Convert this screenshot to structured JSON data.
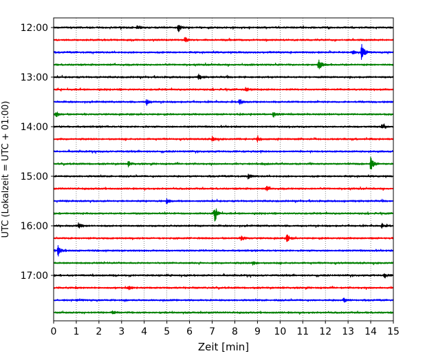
{
  "chart_data": {
    "type": "line",
    "title": "",
    "xlabel": "Zeit  [min]",
    "ylabel": "UTC (Lokalzeit = UTC + 01:00)",
    "xlim": [
      0,
      15
    ],
    "x_ticks": [
      0,
      1,
      2,
      3,
      4,
      5,
      6,
      7,
      8,
      9,
      10,
      11,
      12,
      13,
      14,
      15
    ],
    "x_tick_labels": [
      "0",
      "1",
      "2",
      "3",
      "4",
      "5",
      "6",
      "7",
      "8",
      "9",
      "10",
      "11",
      "12",
      "13",
      "14",
      "15"
    ],
    "y_tick_labels": [
      "12:00",
      "13:00",
      "14:00",
      "15:00",
      "16:00",
      "17:00"
    ],
    "y_tick_trace_index": [
      0,
      4,
      8,
      12,
      16,
      20
    ],
    "trace_interval_min": 15,
    "grid": true,
    "trace_colors": [
      "#000000",
      "#ff0000",
      "#0000ff",
      "#008000"
    ],
    "series": [
      {
        "start": "12:00",
        "events": [
          [
            3.7,
            0.35
          ],
          [
            5.5,
            0.55
          ]
        ]
      },
      {
        "start": "12:15",
        "events": [
          [
            5.8,
            0.3
          ]
        ]
      },
      {
        "start": "12:30",
        "events": [
          [
            13.6,
            1.0
          ],
          [
            13.2,
            0.25
          ]
        ]
      },
      {
        "start": "12:45",
        "events": [
          [
            11.7,
            0.85
          ]
        ]
      },
      {
        "start": "13:00",
        "events": [
          [
            6.4,
            0.3
          ]
        ]
      },
      {
        "start": "13:15",
        "events": [
          [
            8.5,
            0.3
          ]
        ]
      },
      {
        "start": "13:30",
        "events": [
          [
            4.1,
            0.35
          ],
          [
            8.2,
            0.4
          ]
        ]
      },
      {
        "start": "13:45",
        "events": [
          [
            0.1,
            0.4
          ],
          [
            9.7,
            0.3
          ]
        ]
      },
      {
        "start": "14:00",
        "events": [
          [
            14.5,
            0.4
          ]
        ]
      },
      {
        "start": "14:15",
        "events": [
          [
            7.0,
            0.3
          ],
          [
            9.0,
            0.35
          ]
        ]
      },
      {
        "start": "14:30",
        "events": []
      },
      {
        "start": "14:45",
        "events": [
          [
            3.3,
            0.3
          ],
          [
            14.0,
            0.9
          ]
        ]
      },
      {
        "start": "15:00",
        "events": [
          [
            8.6,
            0.3
          ]
        ]
      },
      {
        "start": "15:15",
        "events": [
          [
            9.4,
            0.3
          ]
        ]
      },
      {
        "start": "15:30",
        "events": [
          [
            5.0,
            0.35
          ]
        ]
      },
      {
        "start": "15:45",
        "events": [
          [
            7.1,
            1.1
          ]
        ]
      },
      {
        "start": "16:00",
        "events": [
          [
            1.1,
            0.35
          ],
          [
            14.5,
            0.3
          ]
        ]
      },
      {
        "start": "16:15",
        "events": [
          [
            8.3,
            0.35
          ],
          [
            10.3,
            0.45
          ]
        ]
      },
      {
        "start": "16:30",
        "events": [
          [
            0.2,
            0.65
          ]
        ]
      },
      {
        "start": "16:45",
        "events": [
          [
            8.8,
            0.3
          ]
        ]
      },
      {
        "start": "17:00",
        "events": [
          [
            14.6,
            0.3
          ]
        ]
      },
      {
        "start": "17:15",
        "events": [
          [
            3.3,
            0.3
          ]
        ]
      },
      {
        "start": "17:30",
        "events": [
          [
            12.8,
            0.25
          ]
        ]
      },
      {
        "start": "17:45",
        "events": [
          [
            2.6,
            0.3
          ]
        ]
      }
    ]
  }
}
